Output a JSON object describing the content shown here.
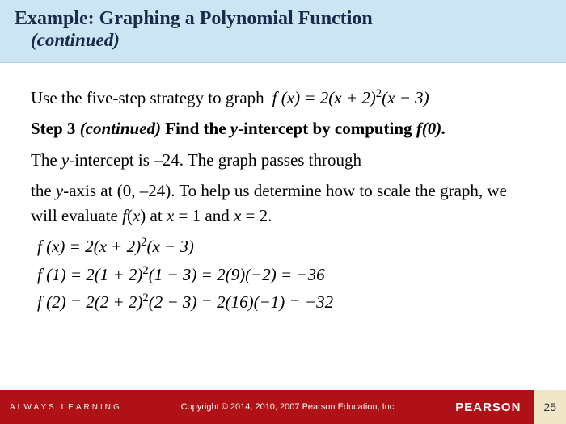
{
  "header": {
    "title": "Example:  Graphing a Polynomial Function",
    "continued": "(continued)"
  },
  "body": {
    "intro_text": "Use the five-step strategy to graph",
    "intro_formula": "f (x) = 2(x + 2)²(x − 3)",
    "step_label": "Step 3",
    "step_cont": "(continued)",
    "step_instruction_a": "Find the ",
    "step_instruction_b": "y-intercept by computing ",
    "step_instruction_c": "f(0).",
    "para1": "The y-intercept is –24.  The graph passes through",
    "para2a": "the y-axis at (0, –24). To help us determine how to scale the graph, we will evaluate ",
    "para2b": "f(x)",
    "para2c": " at ",
    "para2d": "x = 1",
    "para2e": " and ",
    "para2f": "x = 2.",
    "eq1": "f (x) = 2(x + 2)²(x − 3)",
    "eq2": "f (1) = 2(1 + 2)²(1 − 3) = 2(9)(−2) = −36",
    "eq3": "f (2) = 2(2 + 2)²(2 − 3) = 2(16)(−1) = −32"
  },
  "footer": {
    "always": "ALWAYS LEARNING",
    "copyright": "Copyright © 2014, 2010, 2007 Pearson Education, Inc.",
    "brand": "PEARSON",
    "page": "25"
  },
  "colors": {
    "header_bg": "#cce5f2",
    "header_text": "#1a2a4a",
    "footer_bg": "#b01116",
    "page_bg": "#f0e6c8"
  }
}
